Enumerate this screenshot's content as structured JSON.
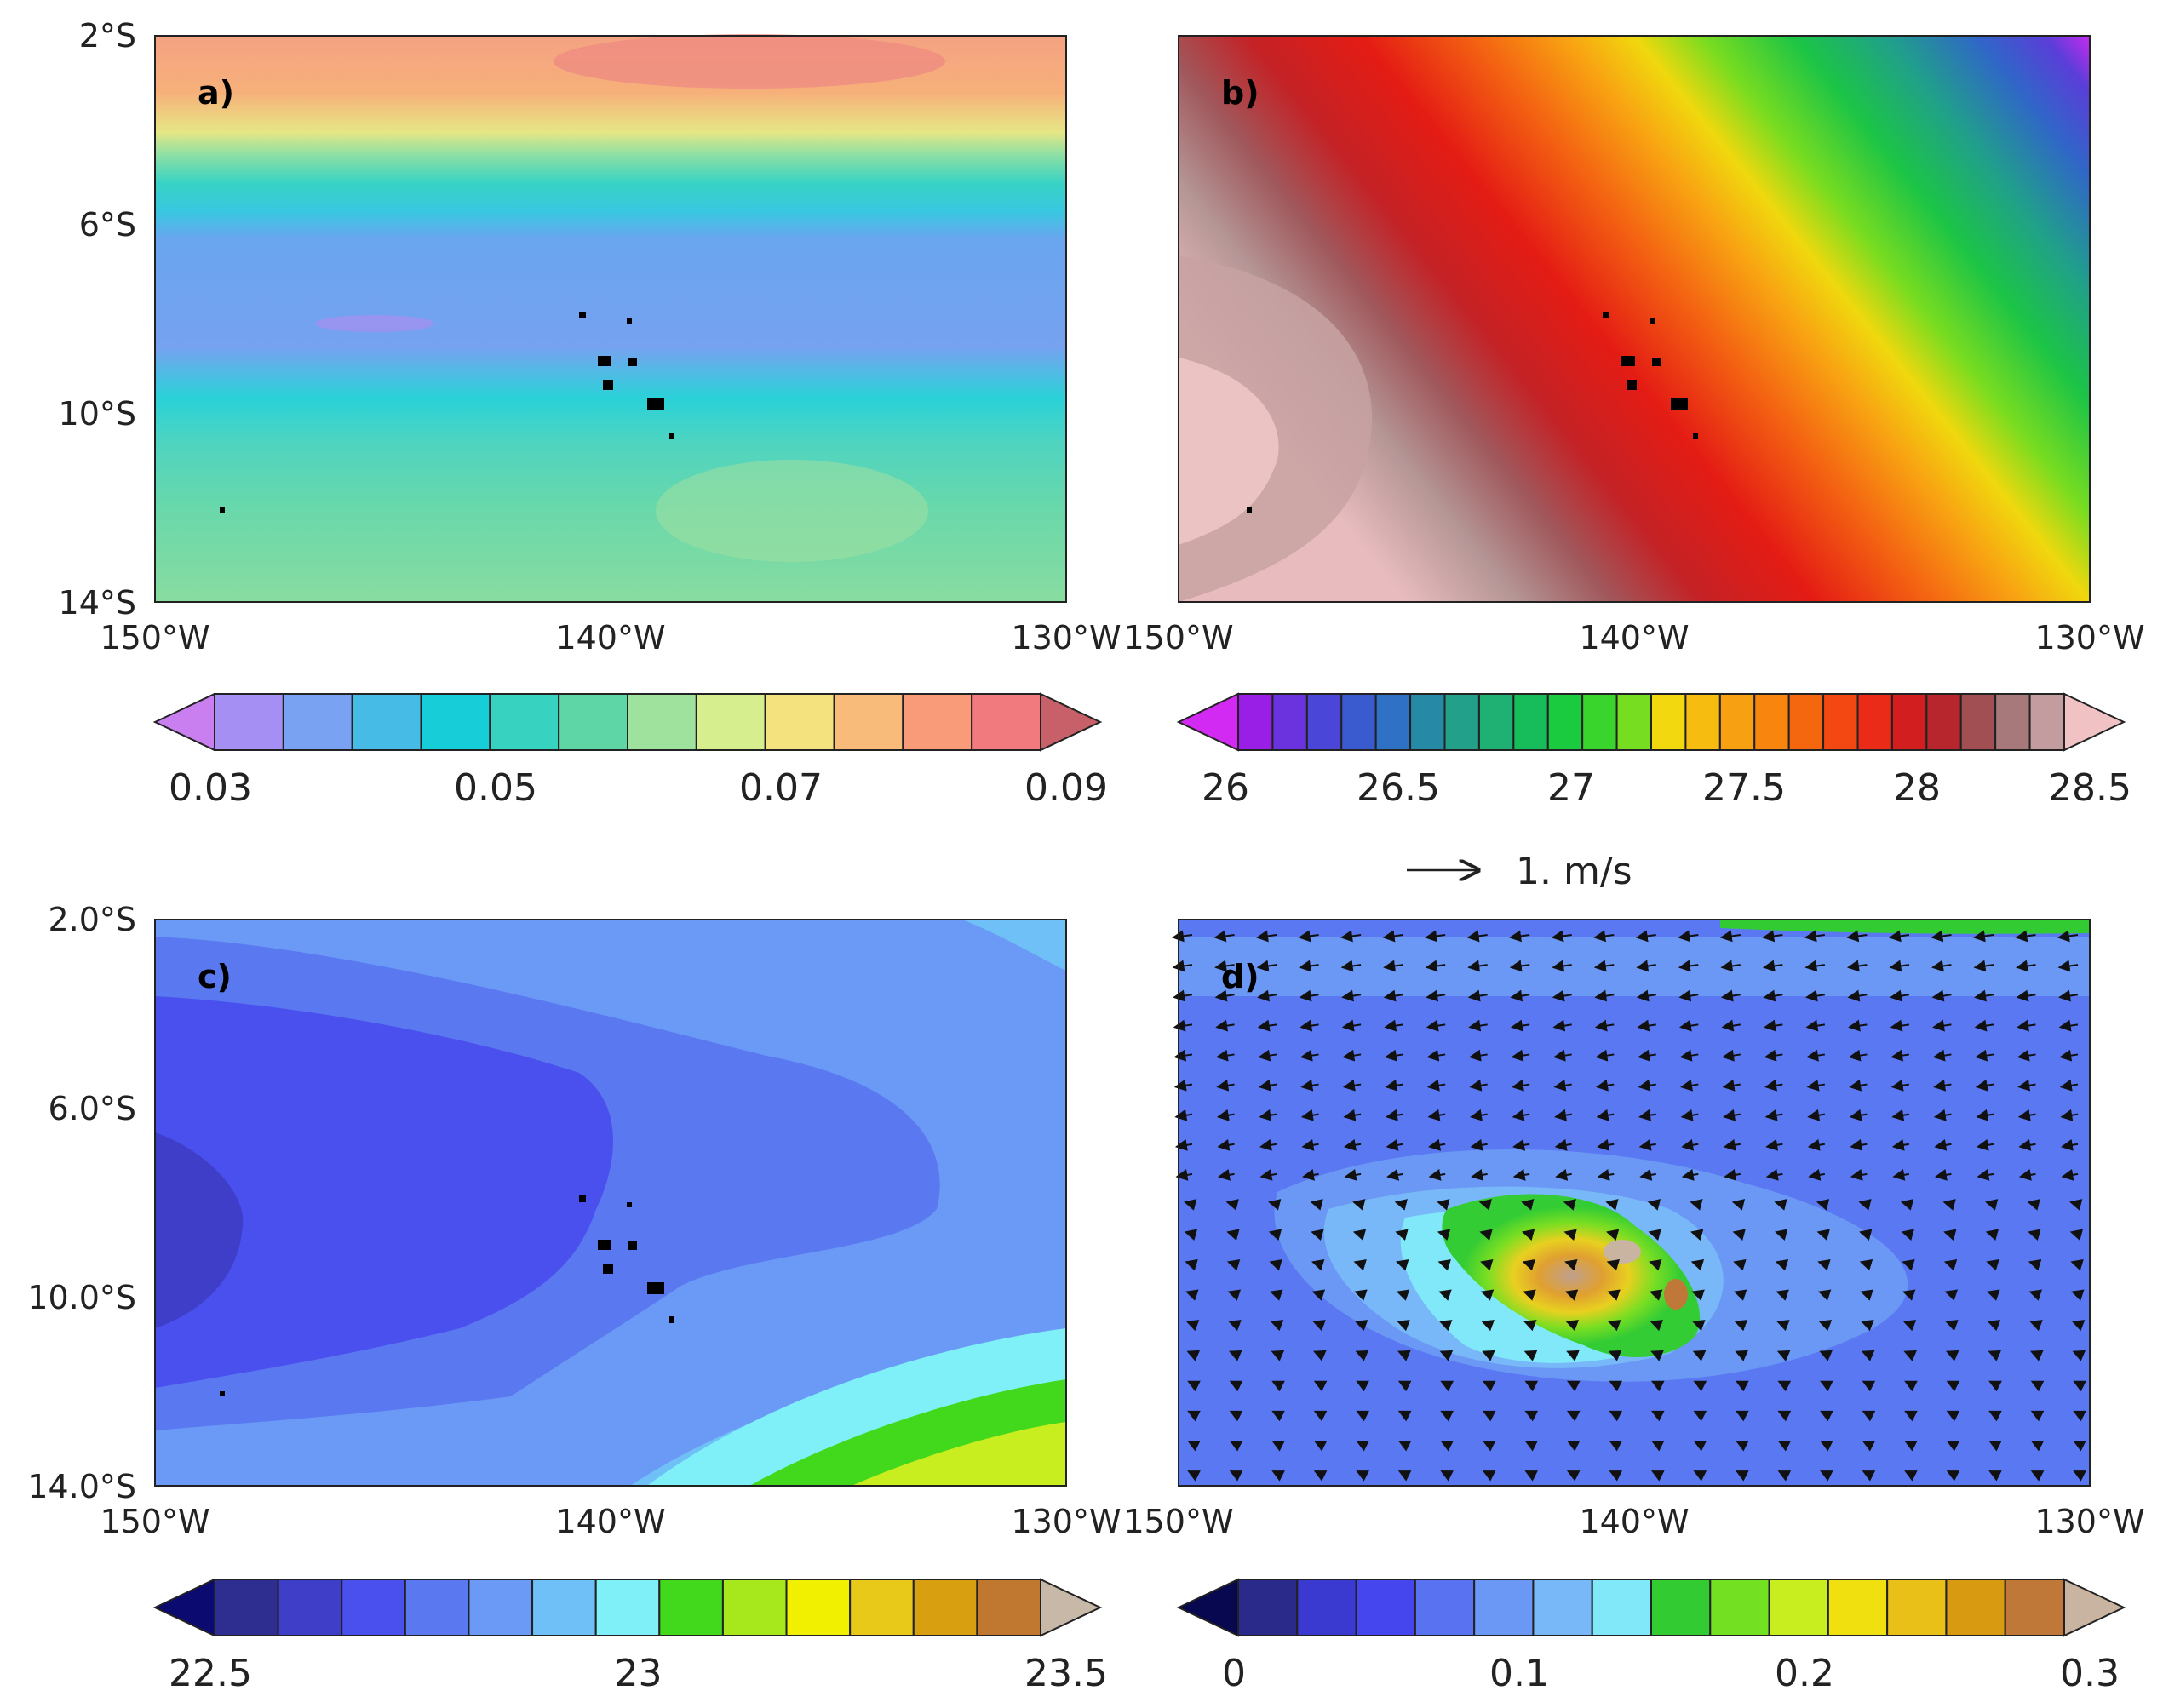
{
  "panels": [
    {
      "label": "a)",
      "lat_ticks": [
        "2°S",
        "6°S",
        "10°S",
        "14°S"
      ],
      "lon_ticks": [
        "150°W",
        "140°W",
        "130°W"
      ],
      "colorbar": {
        "colors": [
          "#c97ff0",
          "#a58ff3",
          "#7aa2f2",
          "#45bbe6",
          "#16cdd8",
          "#38d3c0",
          "#5fd6a6",
          "#9fe29d",
          "#d6ee8e",
          "#f4e27e",
          "#f8bb79",
          "#f99a79",
          "#f07a7e",
          "#c8606a"
        ],
        "labels": [
          "0.03",
          "0.05",
          "0.07",
          "0.09"
        ]
      }
    },
    {
      "label": "b)",
      "lat_ticks": [],
      "lon_ticks": [
        "150°W",
        "140°W",
        "130°W"
      ],
      "colorbar": {
        "colors": [
          "#d22af2",
          "#9a1fe6",
          "#6a33dd",
          "#4a46d8",
          "#3a5bd0",
          "#2f71c4",
          "#268aa6",
          "#23a08a",
          "#1fb173",
          "#17bd5b",
          "#1bcb3f",
          "#3ad52c",
          "#76dd20",
          "#f2d80e",
          "#f7bc10",
          "#f7a012",
          "#f8860e",
          "#f5670f",
          "#f34812",
          "#ea2b17",
          "#d21e1e",
          "#b7262c",
          "#a14f52",
          "#a7797b",
          "#c29c9e",
          "#f0c2c3"
        ],
        "labels": [
          "26",
          "26.5",
          "27",
          "27.5",
          "28",
          "28.5"
        ]
      }
    },
    {
      "label": "c)",
      "lat_ticks": [
        "2.0°S",
        "6.0°S",
        "10.0°S",
        "14.0°S"
      ],
      "lon_ticks": [
        "150°W",
        "140°W",
        "130°W"
      ],
      "colorbar": {
        "colors": [
          "#0a0a70",
          "#2e2e90",
          "#3e3ec8",
          "#4a50ee",
          "#5a78f0",
          "#6a9af5",
          "#70c0f8",
          "#80f0f8",
          "#42d81c",
          "#a6e81c",
          "#f0f000",
          "#e8c818",
          "#d8a010",
          "#c07830",
          "#c8b8a8"
        ],
        "labels": [
          "22.5",
          "23",
          "23.5"
        ]
      }
    },
    {
      "label": "d)",
      "lat_ticks": [],
      "lon_ticks": [
        "150°W",
        "140°W",
        "130°W"
      ],
      "vector_ref": "1. m/s",
      "colorbar": {
        "colors": [
          "#080850",
          "#2a2a8a",
          "#3a3ad0",
          "#4646ee",
          "#5872f2",
          "#6a98f4",
          "#78b8f8",
          "#80e8f8",
          "#32cc32",
          "#74e022",
          "#c8ee20",
          "#f0e010",
          "#e8c018",
          "#d89a10",
          "#c07838",
          "#c8b4a0"
        ],
        "labels": [
          "0",
          "0.1",
          "0.2",
          "0.3"
        ]
      }
    }
  ]
}
